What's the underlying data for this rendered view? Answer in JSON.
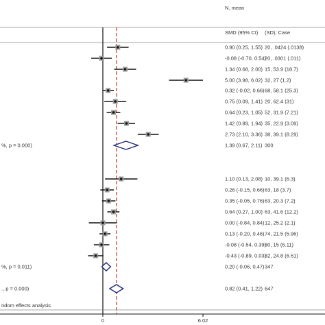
{
  "headers": {
    "effect": "SMD (95% CI)",
    "n_mean_line1": "N, mean",
    "n_mean_line2": "(SD); Case"
  },
  "footnote": "ndom effects analysis",
  "chart_data": {
    "type": "forest",
    "x_ticks": [
      {
        "value": 0,
        "label": "0"
      },
      {
        "value": 6.02,
        "label": "6.02"
      }
    ],
    "overall_reference_line": 0.82,
    "studies": [
      {
        "smd": 0.9,
        "lo": 0.25,
        "hi": 1.55,
        "ci_text": "0.90 (0.25, 1.55)",
        "n_text": "20, .0424 (.0138)"
      },
      {
        "smd": -0.08,
        "lo": -0.7,
        "hi": 0.54,
        "ci_text": "-0.08 (-0.70, 0.54)",
        "n_text": "20, .0301 (.011)"
      },
      {
        "smd": 1.34,
        "lo": 0.68,
        "hi": 2.0,
        "ci_text": "1.34 (0.68, 2.00)",
        "n_text": "15, 53.9 (18.7)"
      },
      {
        "smd": 5.0,
        "lo": 3.98,
        "hi": 6.02,
        "ci_text": "5.00 (3.98, 6.02)",
        "n_text": "32, 27 (1.2)"
      },
      {
        "smd": 0.32,
        "lo": -0.02,
        "hi": 0.66,
        "ci_text": "0.32 (-0.02, 0.66)",
        "n_text": "68, 58.1 (25.3)"
      },
      {
        "smd": 0.75,
        "lo": 0.09,
        "hi": 1.41,
        "ci_text": "0.75 (0.09, 1.41)",
        "n_text": "20, 62.4 (31)"
      },
      {
        "smd": 0.64,
        "lo": 0.23,
        "hi": 1.05,
        "ci_text": "0.64 (0.23, 1.05)",
        "n_text": "52, 31.9 (7.21)"
      },
      {
        "smd": 1.42,
        "lo": 0.89,
        "hi": 1.94,
        "ci_text": "1.42 (0.89, 1.94)",
        "n_text": "35, 22.9 (3.09)"
      },
      {
        "smd": 2.73,
        "lo": 2.1,
        "hi": 3.36,
        "ci_text": "2.73 (2.10, 3.36)",
        "n_text": "38, 39.1 (8.29)"
      },
      {
        "smd": 1.1,
        "lo": 0.13,
        "hi": 2.08,
        "ci_text": "1.10 (0.13, 2.08)",
        "n_text": "10, 39.1 (6.3)"
      },
      {
        "smd": 0.26,
        "lo": -0.15,
        "hi": 0.66,
        "ci_text": "0.26 (-0.15, 0.66)",
        "n_text": "63, 18 (3.7)"
      },
      {
        "smd": 0.35,
        "lo": -0.05,
        "hi": 0.76,
        "ci_text": "0.35 (-0.05, 0.76)",
        "n_text": "63, 20.3 (7.2)"
      },
      {
        "smd": 0.64,
        "lo": 0.27,
        "hi": 1.0,
        "ci_text": "0.64 (0.27, 1.00)",
        "n_text": "63, 41.6 (12.2)"
      },
      {
        "smd": 0.0,
        "lo": -0.84,
        "hi": 0.84,
        "ci_text": "0.00 (-0.84, 0.84)",
        "n_text": "12, 25.2 (2.1)"
      },
      {
        "smd": 0.13,
        "lo": -0.2,
        "hi": 0.46,
        "ci_text": "0.13 (-0.20, 0.46)",
        "n_text": "74, 21.5 (5.96)"
      },
      {
        "smd": -0.08,
        "lo": -0.54,
        "hi": 0.39,
        "ci_text": "-0.08 (-0.54, 0.39)",
        "n_text": "30, 15 (6.11)"
      },
      {
        "smd": -0.43,
        "lo": -0.89,
        "hi": 0.03,
        "ci_text": "-0.43 (-0.89, 0.03)",
        "n_text": "32, 24.8 (6.51)"
      }
    ],
    "subtotals": [
      {
        "smd": 1.39,
        "lo": 0.67,
        "hi": 2.11,
        "ci_text": "1.39 (0.67, 2.11)",
        "n_text": "300",
        "label": "%, p = 0.000)"
      },
      {
        "smd": 0.2,
        "lo": -0.06,
        "hi": 0.47,
        "ci_text": "0.20 (-0.06, 0.47)",
        "n_text": "347",
        "label": "%, p = 0.011)"
      }
    ],
    "overall": {
      "smd": 0.82,
      "lo": 0.41,
      "hi": 1.22,
      "ci_text": "0.82 (0.41, 1.22)",
      "n_text": "647",
      "label": "., p = 0.000)"
    }
  }
}
